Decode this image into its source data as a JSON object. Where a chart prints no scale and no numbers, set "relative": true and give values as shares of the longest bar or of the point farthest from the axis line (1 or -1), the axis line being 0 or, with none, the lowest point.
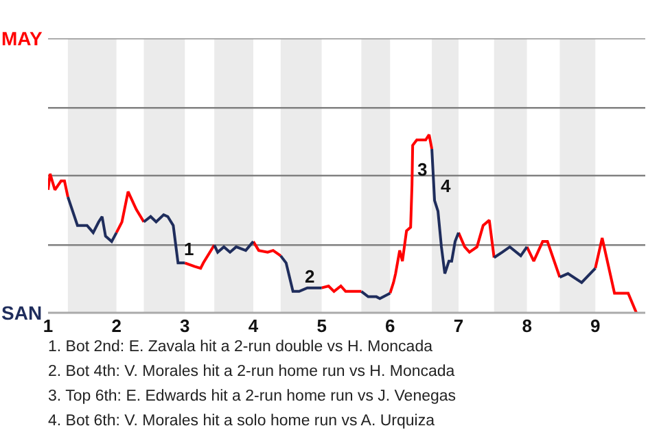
{
  "chart_data": {
    "type": "line",
    "x": [
      1,
      1.03,
      1.1,
      1.19,
      1.24,
      1.29,
      1.43,
      1.57,
      1.66,
      1.74,
      1.79,
      1.84,
      1.93,
      2,
      2.08,
      2.17,
      2.29,
      2.4,
      2.5,
      2.58,
      2.69,
      2.75,
      2.83,
      2.9,
      3,
      3.14,
      3.23,
      3.27,
      3.43,
      3.48,
      3.57,
      3.66,
      3.75,
      3.89,
      4,
      4.08,
      4.21,
      4.29,
      4.4,
      4.48,
      4.58,
      4.67,
      4.79,
      5,
      5.1,
      5.18,
      5.28,
      5.35,
      5.43,
      5.58,
      5.68,
      5.8,
      5.85,
      6,
      6.05,
      6.08,
      6.14,
      6.18,
      6.24,
      6.3,
      6.32,
      6.33,
      6.39,
      6.52,
      6.57,
      6.61,
      6.65,
      6.7,
      6.75,
      6.8,
      6.86,
      6.9,
      6.95,
      7,
      7.09,
      7.16,
      7.27,
      7.36,
      7.45,
      7.52,
      7.64,
      7.75,
      7.91,
      8,
      8.1,
      8.23,
      8.3,
      8.48,
      8.6,
      8.8,
      9,
      9.1,
      9.28,
      9.48,
      9.6
    ],
    "relative": true,
    "series": [
      {
        "color": "#ff0000",
        "values": [
          0.69,
          0.78,
          0.69,
          0.74,
          0.74,
          0.65,
          null,
          null,
          null,
          null,
          null,
          null,
          null,
          0.45,
          0.51,
          0.68,
          0.58,
          0.51,
          null,
          null,
          null,
          null,
          null,
          null,
          0.28,
          0.26,
          0.25,
          0.28,
          0.38,
          null,
          null,
          null,
          null,
          null,
          0.4,
          0.35,
          0.34,
          0.35,
          0.32,
          null,
          null,
          null,
          null,
          0.14,
          0.15,
          0.12,
          0.15,
          0.12,
          0.12,
          0.12,
          null,
          null,
          null,
          0.11,
          0.17,
          0.22,
          0.35,
          0.29,
          0.46,
          0.48,
          0.72,
          0.94,
          0.97,
          0.97,
          1,
          0.92,
          null,
          null,
          null,
          null,
          null,
          null,
          null,
          0.45,
          0.37,
          0.34,
          0.37,
          0.49,
          0.52,
          0.31,
          null,
          null,
          null,
          0.37,
          0.29,
          0.4,
          0.4,
          0.2,
          null,
          null,
          0.25,
          0.42,
          0.11,
          0.11,
          0
        ]
      },
      {
        "color": "#1f2d5c",
        "values": [
          null,
          null,
          null,
          null,
          null,
          0.65,
          0.49,
          0.49,
          0.45,
          0.51,
          0.54,
          0.43,
          0.4,
          0.45,
          null,
          null,
          null,
          0.51,
          0.54,
          0.51,
          0.55,
          0.54,
          0.49,
          0.28,
          0.28,
          null,
          null,
          null,
          0.38,
          0.34,
          0.37,
          0.34,
          0.37,
          0.35,
          0.4,
          null,
          null,
          null,
          0.32,
          0.28,
          0.12,
          0.12,
          0.14,
          0.14,
          null,
          null,
          null,
          null,
          null,
          0.12,
          0.09,
          0.09,
          0.08,
          0.11,
          null,
          null,
          null,
          null,
          null,
          null,
          null,
          null,
          null,
          null,
          null,
          0.92,
          0.63,
          0.57,
          0.37,
          0.22,
          0.29,
          0.29,
          0.4,
          0.45,
          null,
          null,
          null,
          null,
          null,
          0.31,
          0.34,
          0.37,
          0.32,
          0.37,
          null,
          null,
          null,
          0.2,
          0.22,
          0.17,
          0.25,
          null,
          null,
          null,
          null
        ]
      }
    ],
    "xlim": [
      1,
      9.73
    ],
    "xticks": [
      1,
      2,
      3,
      4,
      5,
      6,
      7,
      8,
      9
    ],
    "ref_lines": [
      {
        "axis": "y",
        "value": 0.38,
        "color": "#808080"
      },
      {
        "axis": "y",
        "value": 0.77,
        "color": "#808080"
      },
      {
        "axis": "y",
        "value": 1.15,
        "color": "#808080"
      },
      {
        "axis": "y",
        "value": 1.54,
        "color": "#808080"
      }
    ],
    "line_style": "solid",
    "bands": [
      {
        "axis": "x",
        "from": 1.29,
        "to": 2,
        "color": "#ebebeb"
      },
      {
        "axis": "x",
        "from": 2.4,
        "to": 3,
        "color": "#ebebeb"
      },
      {
        "axis": "x",
        "from": 3.43,
        "to": 4,
        "color": "#ebebeb"
      },
      {
        "axis": "x",
        "from": 4.4,
        "to": 5,
        "color": "#ebebeb"
      },
      {
        "axis": "x",
        "from": 5.58,
        "to": 6,
        "color": "#ebebeb"
      },
      {
        "axis": "x",
        "from": 6.61,
        "to": 7,
        "color": "#ebebeb"
      },
      {
        "axis": "x",
        "from": 7.52,
        "to": 8,
        "color": "#ebebeb"
      },
      {
        "axis": "x",
        "from": 8.48,
        "to": 9,
        "color": "#ebebeb"
      }
    ],
    "annotations": [
      "MAY",
      "SAN",
      {
        "text": "1",
        "x": 2.9,
        "y": 0.28
      },
      {
        "text": "2",
        "x": 4.67,
        "y": 0.12
      },
      {
        "text": "3",
        "x": 6.32,
        "y": 0.72
      },
      {
        "text": "4",
        "x": 6.65,
        "y": 0.63
      },
      "1. Bot 2nd: E. Zavala hit a 2-run double vs H. Moncada",
      "2. Bot 4th: V. Morales hit a 2-run home run vs H. Moncada",
      "3. Top 6th: E. Edwards hit a 2-run home run vs J. Venegas",
      "4. Bot 6th: V. Morales hit a solo home run vs A. Urquiza"
    ]
  }
}
